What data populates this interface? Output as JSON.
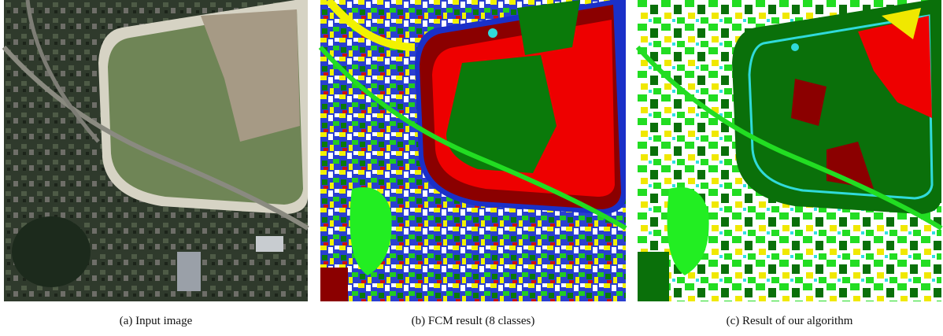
{
  "figure": {
    "panels": [
      {
        "caption": "(a) Input image"
      },
      {
        "caption": "(b) FCM result (8 classes)"
      },
      {
        "caption": "(c) Result of our algorithm"
      }
    ]
  }
}
